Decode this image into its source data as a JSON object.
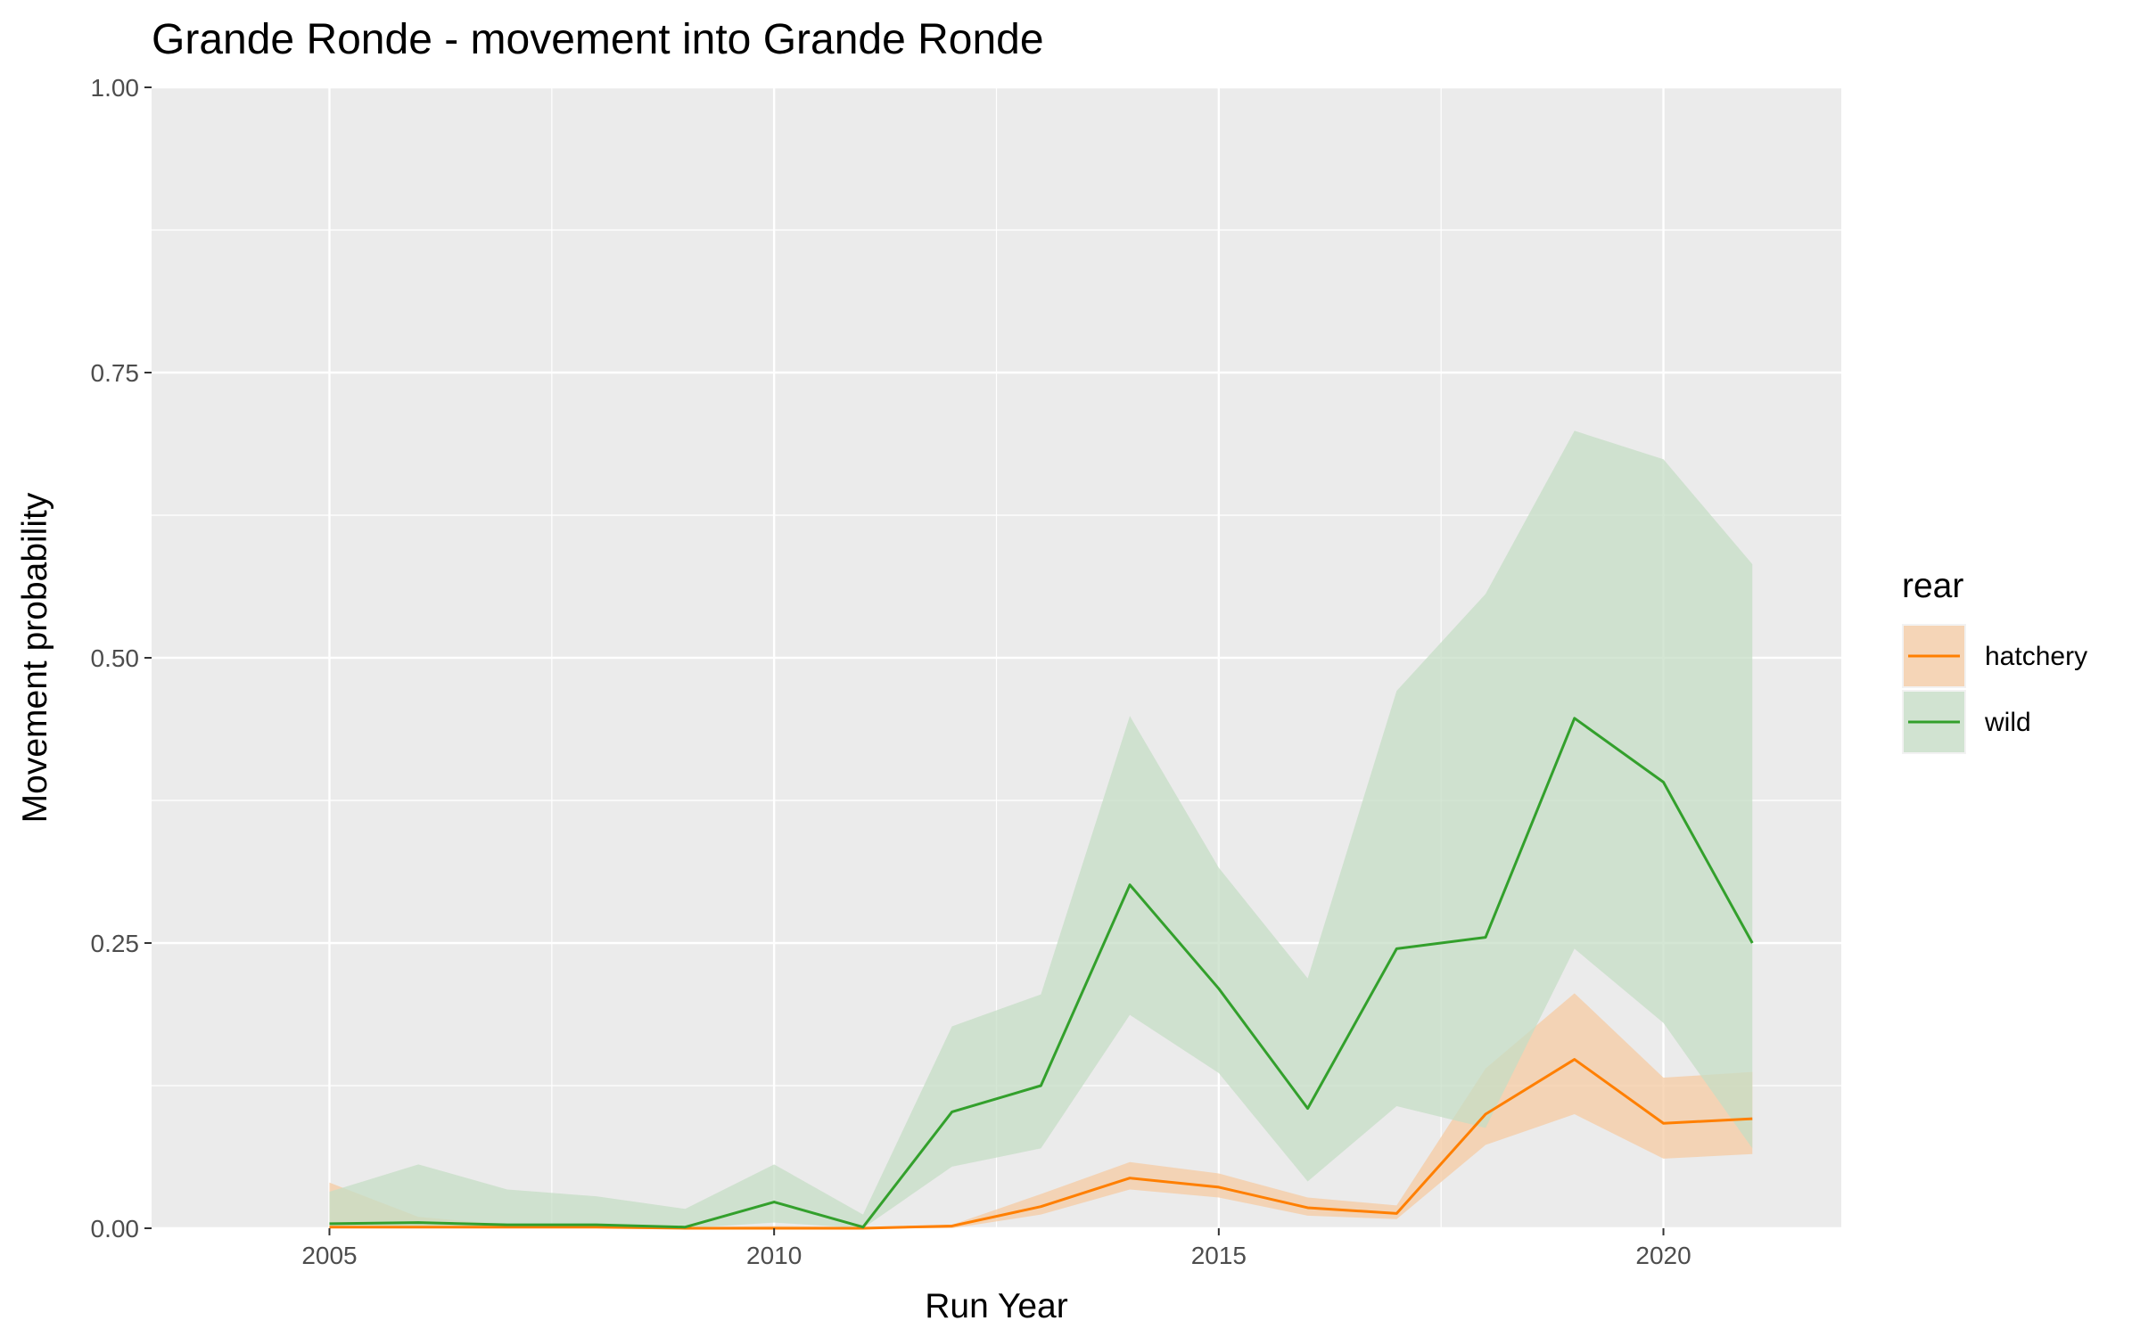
{
  "chart_data": {
    "type": "line",
    "title": "Grande Ronde - movement into Grande Ronde",
    "xlabel": "Run Year",
    "ylabel": "Movement probability",
    "xlim": [
      2003,
      2022
    ],
    "ylim": [
      0,
      1
    ],
    "x_ticks": [
      2005,
      2010,
      2015,
      2020
    ],
    "x_tick_labels": [
      "2005",
      "2010",
      "2015",
      "2020"
    ],
    "y_ticks": [
      0,
      0.25,
      0.5,
      0.75,
      1
    ],
    "y_tick_labels": [
      "0.00",
      "0.25",
      "0.50",
      "0.75",
      "1.00"
    ],
    "grid": true,
    "legend": {
      "title": "rear",
      "position": "right"
    },
    "x": [
      2005,
      2006,
      2007,
      2008,
      2009,
      2010,
      2011,
      2012,
      2013,
      2014,
      2015,
      2016,
      2017,
      2018,
      2019,
      2020,
      2021
    ],
    "series": [
      {
        "name": "hatchery",
        "color": "#FF7F00",
        "fill": "#F6CBA3",
        "values": [
          0.001,
          0.001,
          0.001,
          0.001,
          0.0,
          0.0,
          0.0,
          0.002,
          0.019,
          0.044,
          0.036,
          0.018,
          0.013,
          0.1,
          0.148,
          0.092,
          0.096
        ],
        "lower": [
          0.0,
          0.0,
          0.0,
          0.0,
          0.0,
          0.0,
          0.0,
          0.0,
          0.012,
          0.034,
          0.027,
          0.011,
          0.008,
          0.073,
          0.1,
          0.061,
          0.065
        ],
        "upper": [
          0.04,
          0.01,
          0.003,
          0.002,
          0.001,
          0.002,
          0.001,
          0.003,
          0.03,
          0.058,
          0.048,
          0.027,
          0.02,
          0.14,
          0.206,
          0.132,
          0.137
        ]
      },
      {
        "name": "wild",
        "color": "#33A02C",
        "fill": "#C6DEC6",
        "values": [
          0.004,
          0.005,
          0.003,
          0.003,
          0.001,
          0.023,
          0.001,
          0.102,
          0.125,
          0.301,
          0.21,
          0.105,
          0.245,
          0.255,
          0.447,
          0.391,
          0.25
        ],
        "lower": [
          0.0,
          0.0,
          0.0,
          0.0,
          0.0,
          0.005,
          0.0,
          0.054,
          0.07,
          0.187,
          0.136,
          0.041,
          0.107,
          0.088,
          0.245,
          0.18,
          0.07
        ],
        "upper": [
          0.032,
          0.056,
          0.034,
          0.028,
          0.017,
          0.056,
          0.012,
          0.177,
          0.205,
          0.449,
          0.316,
          0.219,
          0.471,
          0.556,
          0.699,
          0.674,
          0.582
        ]
      }
    ]
  }
}
